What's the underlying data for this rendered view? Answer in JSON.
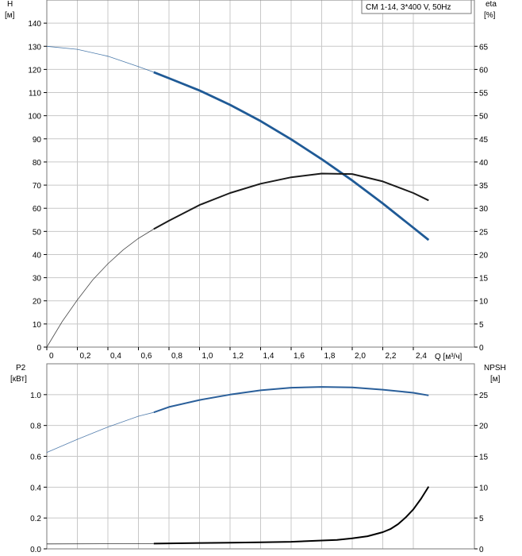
{
  "legend": {
    "title": "CM 1-14, 3*400 V, 50Hz"
  },
  "colors": {
    "head": "#1f5a96",
    "power": "#2a5f9a",
    "eta": "#1a1a1a",
    "npsh": "#000000",
    "grid": "#c8c8c8"
  },
  "chart_data": [
    {
      "id": "top",
      "type": "line",
      "left_axis": {
        "label": "H",
        "unit": "[м]",
        "range": [
          0,
          150
        ],
        "ticks": [
          0,
          10,
          20,
          30,
          40,
          50,
          60,
          70,
          80,
          90,
          100,
          110,
          120,
          130,
          140
        ]
      },
      "right_axis": {
        "label": "eta",
        "unit": "[%]",
        "range": [
          0,
          75
        ],
        "ticks": [
          0,
          5,
          10,
          15,
          20,
          25,
          30,
          35,
          40,
          45,
          50,
          55,
          60,
          65
        ]
      },
      "x_axis": {
        "label": "Q [м³/ч]",
        "range": [
          0,
          2.8
        ],
        "ticks": [
          0,
          0.2,
          0.4,
          0.6,
          0.8,
          1.0,
          1.2,
          1.4,
          1.6,
          1.8,
          2.0,
          2.2,
          2.4
        ],
        "tick_labels": [
          "0",
          "0,2",
          "0,4",
          "0,6",
          "0,8",
          "1,0",
          "1,2",
          "1,4",
          "1,6",
          "1,8",
          "2,0",
          "2,2",
          "2,4"
        ]
      },
      "grid": true,
      "series": [
        {
          "id": "head",
          "axis": "left",
          "x": [
            0,
            0.2,
            0.4,
            0.6,
            0.7,
            0.8,
            1.0,
            1.2,
            1.4,
            1.6,
            1.8,
            2.0,
            2.2,
            2.4,
            2.5
          ],
          "y": [
            130,
            128.7,
            125.7,
            121.2,
            118.8,
            116.2,
            110.9,
            104.7,
            97.7,
            89.8,
            81.2,
            72.0,
            62.1,
            51.6,
            46.3
          ],
          "bold_from": 0.7
        },
        {
          "id": "eta",
          "axis": "right",
          "x": [
            0,
            0.1,
            0.2,
            0.3,
            0.4,
            0.5,
            0.6,
            0.7,
            0.8,
            1.0,
            1.2,
            1.4,
            1.6,
            1.8,
            2.0,
            2.2,
            2.4,
            2.5
          ],
          "y": [
            0,
            5.5,
            10.2,
            14.5,
            18.0,
            21.0,
            23.5,
            25.5,
            27.3,
            30.7,
            33.3,
            35.3,
            36.7,
            37.5,
            37.4,
            35.8,
            33.3,
            31.7
          ],
          "bold_from": 0.7
        }
      ]
    },
    {
      "id": "bottom",
      "type": "line",
      "left_axis": {
        "label": "P2",
        "unit": "[кВт]",
        "range": [
          0,
          1.2
        ],
        "ticks": [
          0,
          0.2,
          0.4,
          0.6,
          0.8,
          1.0
        ],
        "tick_labels": [
          "0.0",
          "0.2",
          "0.4",
          "0.6",
          "0.8",
          "1.0"
        ]
      },
      "right_axis": {
        "label": "NPSH",
        "unit": "[м]",
        "range": [
          0,
          30
        ],
        "ticks": [
          0,
          5,
          10,
          15,
          20,
          25
        ]
      },
      "x_range": [
        0,
        2.8
      ],
      "grid": true,
      "series": [
        {
          "id": "power",
          "axis": "left",
          "x": [
            0,
            0.2,
            0.4,
            0.6,
            0.7,
            0.8,
            1.0,
            1.2,
            1.4,
            1.6,
            1.8,
            2.0,
            2.2,
            2.4,
            2.5
          ],
          "y": [
            0.625,
            0.71,
            0.79,
            0.86,
            0.885,
            0.92,
            0.965,
            1.0,
            1.028,
            1.045,
            1.05,
            1.047,
            1.032,
            1.012,
            0.995
          ],
          "bold_from": 0.7
        },
        {
          "id": "npsh",
          "axis": "right",
          "x": [
            0,
            0.7,
            1.0,
            1.2,
            1.4,
            1.6,
            1.8,
            1.9,
            2.0,
            2.1,
            2.2,
            2.25,
            2.3,
            2.35,
            2.4,
            2.45,
            2.5
          ],
          "y": [
            0.8,
            0.85,
            0.95,
            1.0,
            1.05,
            1.15,
            1.35,
            1.45,
            1.7,
            2.05,
            2.7,
            3.2,
            4.0,
            5.1,
            6.4,
            8.1,
            10.1
          ],
          "bold_from": 0.7
        }
      ]
    }
  ]
}
